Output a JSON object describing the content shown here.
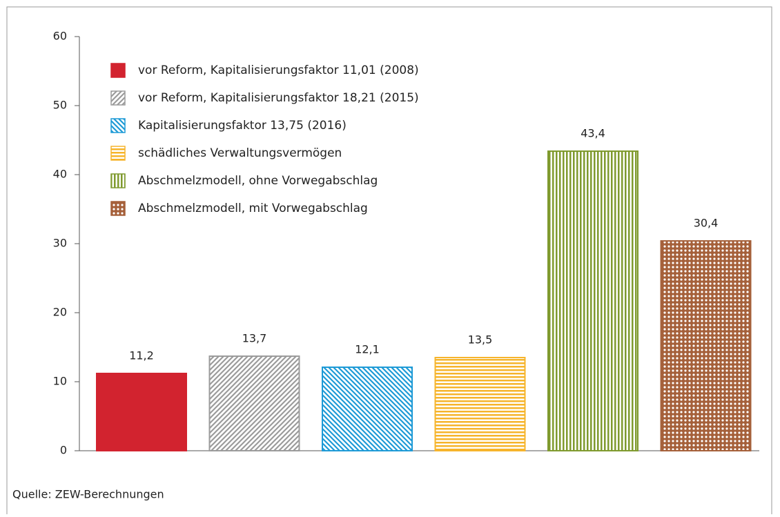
{
  "chart_data": {
    "type": "bar",
    "series": [
      {
        "name": "vor Reform, Kapitalisierungsfaktor 11,01 (2008)",
        "color": "#d2232f",
        "pattern": "solid",
        "values": [
          11.2
        ],
        "value_labels": [
          "11,2"
        ]
      },
      {
        "name": "vor Reform, Kapitalisierungsfaktor 18,21 (2015)",
        "color": "#9b9b9b",
        "pattern": "diagonal",
        "values": [
          13.7
        ],
        "value_labels": [
          "13,7"
        ]
      },
      {
        "name": "Kapitalisierungsfaktor 13,75 (2016)",
        "color": "#1d9ad6",
        "pattern": "diagonal-reverse",
        "values": [
          12.1
        ],
        "value_labels": [
          "12,1"
        ]
      },
      {
        "name": "schädliches Verwaltungsvermögen",
        "color": "#f6b42b",
        "pattern": "horizontal",
        "values": [
          13.5
        ],
        "value_labels": [
          "13,5"
        ]
      },
      {
        "name": "Abschmelzmodell, ohne Vorwegabschlag",
        "color": "#7f9a2e",
        "pattern": "vertical",
        "values": [
          43.4
        ],
        "value_labels": [
          "43,4"
        ]
      },
      {
        "name": "Abschmelzmodell, mit Vorwegabschlag",
        "color": "#a5603a",
        "pattern": "dots",
        "values": [
          30.4
        ],
        "value_labels": [
          "30,4"
        ]
      }
    ],
    "ylim": [
      0,
      60
    ],
    "yticks": [
      0,
      10,
      20,
      30,
      40,
      50,
      60
    ],
    "source": "Quelle: ZEW-Berechnungen"
  }
}
